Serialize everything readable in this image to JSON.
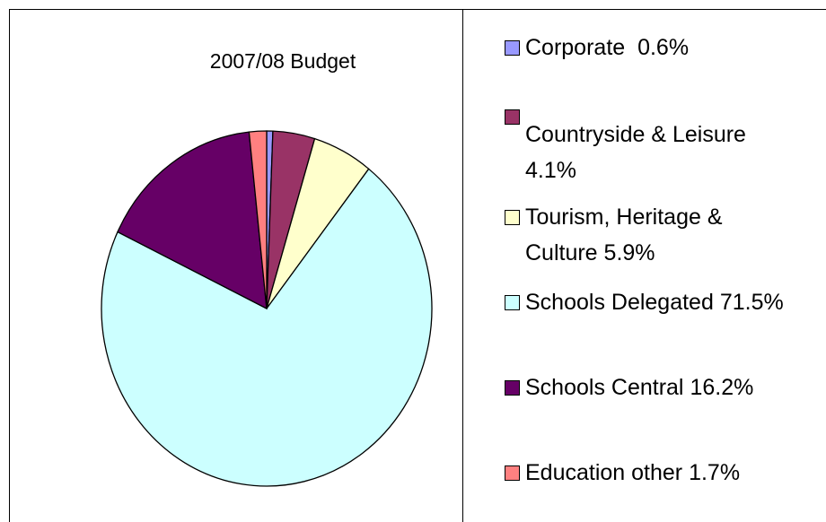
{
  "chart_data": {
    "type": "pie",
    "title": "2007/08  Budget",
    "categories": [
      "Corporate",
      "Countryside & Leisure",
      "Tourism, Heritage & Culture",
      "Schools Delegated",
      "Schools Central",
      "Education other"
    ],
    "values": [
      0.6,
      4.1,
      5.9,
      71.5,
      16.2,
      1.7
    ],
    "value_labels": [
      "0.6%",
      "4.1%",
      "5.9%",
      "71.5%",
      "16.2%",
      "1.7%"
    ],
    "colors": [
      "#9999ff",
      "#993366",
      "#ffffcc",
      "#ccffff",
      "#660066",
      "#ff8080"
    ],
    "legend": "right"
  }
}
